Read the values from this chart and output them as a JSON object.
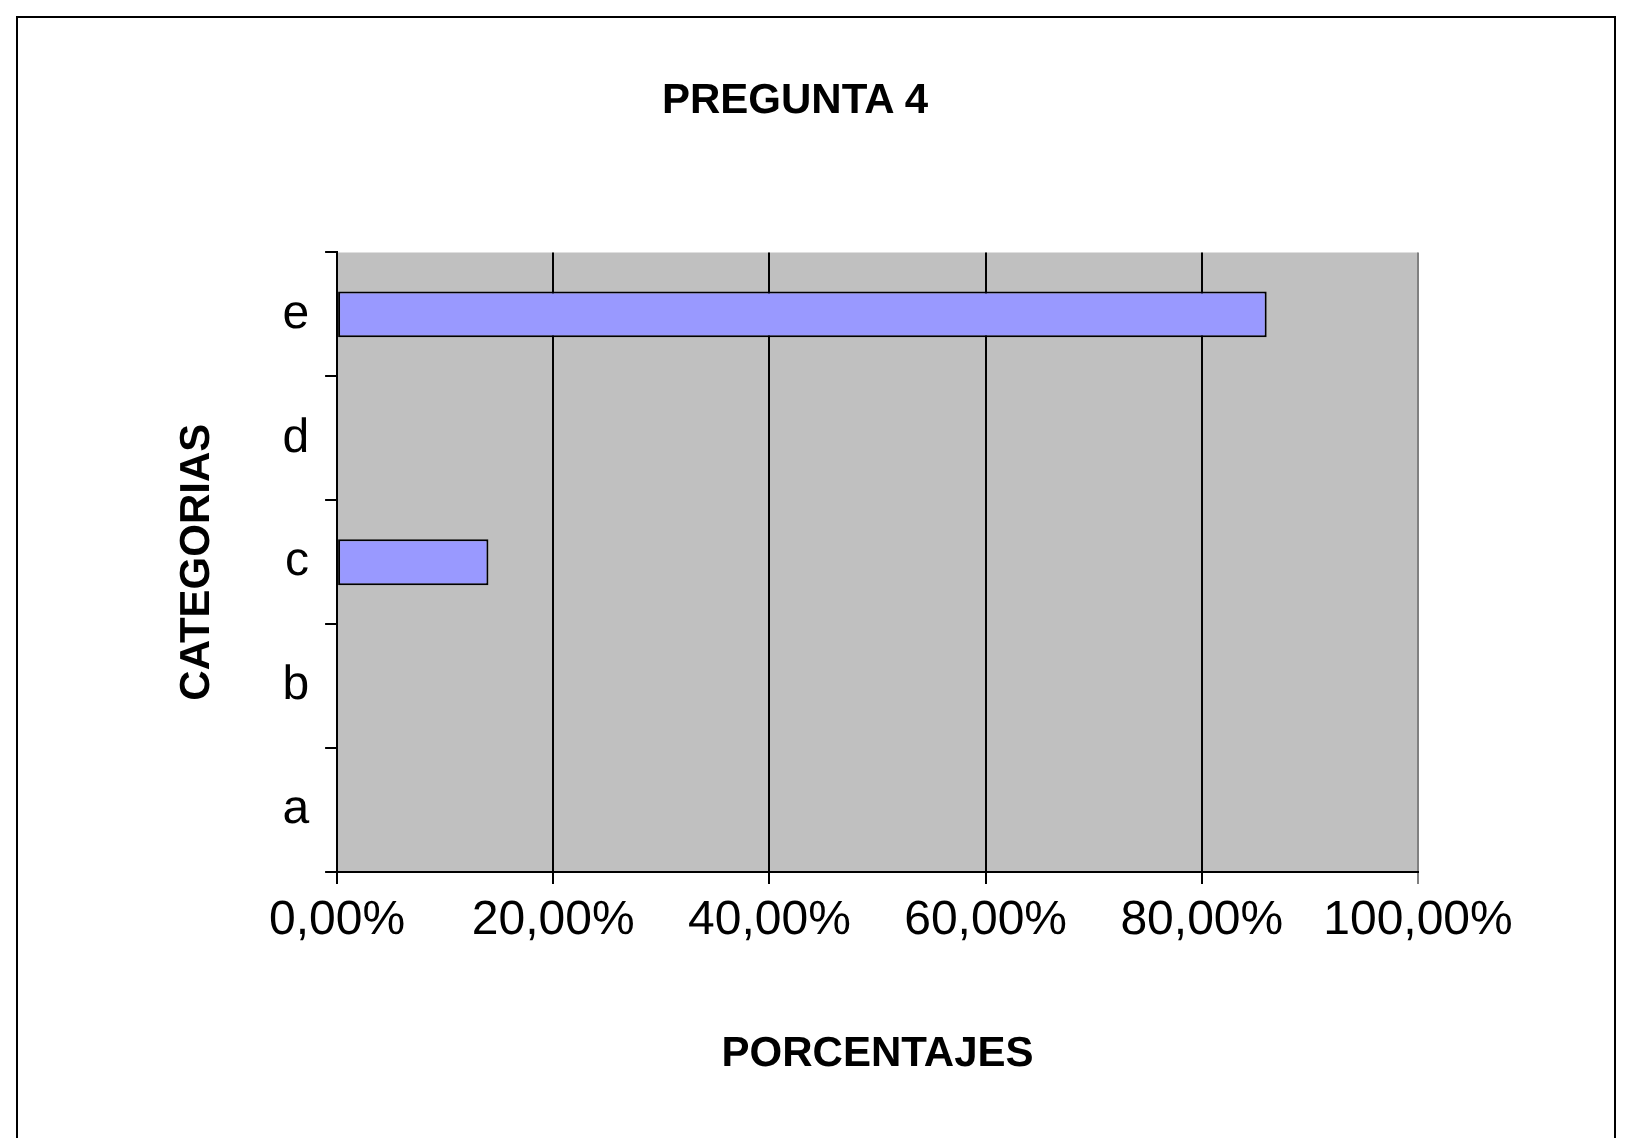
{
  "chart_data": {
    "type": "bar",
    "orientation": "horizontal",
    "title": "PREGUNTA 4",
    "xlabel": "PORCENTAJES",
    "ylabel": "CATEGORIAS",
    "categories": [
      "e",
      "d",
      "c",
      "b",
      "a"
    ],
    "values": [
      86,
      0,
      14,
      0,
      0
    ],
    "color": "#9999ff",
    "xlim": [
      0,
      100
    ],
    "xticks": [
      {
        "value": 0,
        "label": "0,00%"
      },
      {
        "value": 20,
        "label": "20,00%"
      },
      {
        "value": 40,
        "label": "40,00%"
      },
      {
        "value": 60,
        "label": "60,00%"
      },
      {
        "value": 80,
        "label": "80,00%"
      },
      {
        "value": 100,
        "label": "100,00%"
      }
    ],
    "grid": "x",
    "legend": false
  }
}
